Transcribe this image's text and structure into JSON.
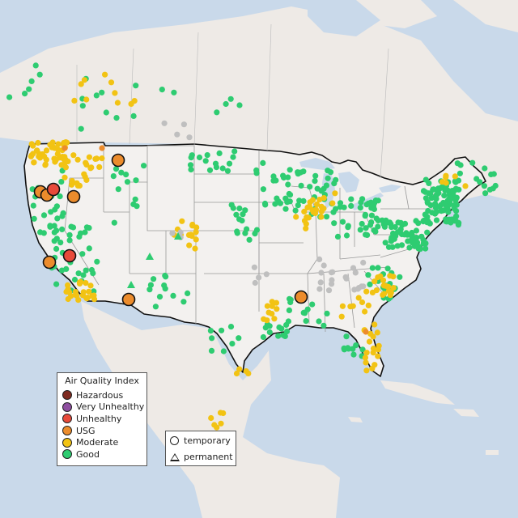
{
  "legend": {
    "title": "Air Quality Index",
    "categories": [
      {
        "label": "Hazardous",
        "color": "#7e2b20"
      },
      {
        "label": "Very Unhealthy",
        "color": "#8e4fa0"
      },
      {
        "label": "Unhealthy",
        "color": "#e84a3a"
      },
      {
        "label": "USG",
        "color": "#ec8c2c"
      },
      {
        "label": "Moderate",
        "color": "#f2c313"
      },
      {
        "label": "Good",
        "color": "#2ecc71"
      }
    ]
  },
  "site_type_legend": {
    "temporary": "temporary",
    "permanent": "permanent"
  },
  "colors": {
    "water": "#c9d9ea",
    "us_land": "#f3f1ef",
    "neighbor_land": "#eeeae6",
    "state_border": "#999999",
    "national_border": "#111111",
    "no_data": "#bfbfbf"
  }
}
